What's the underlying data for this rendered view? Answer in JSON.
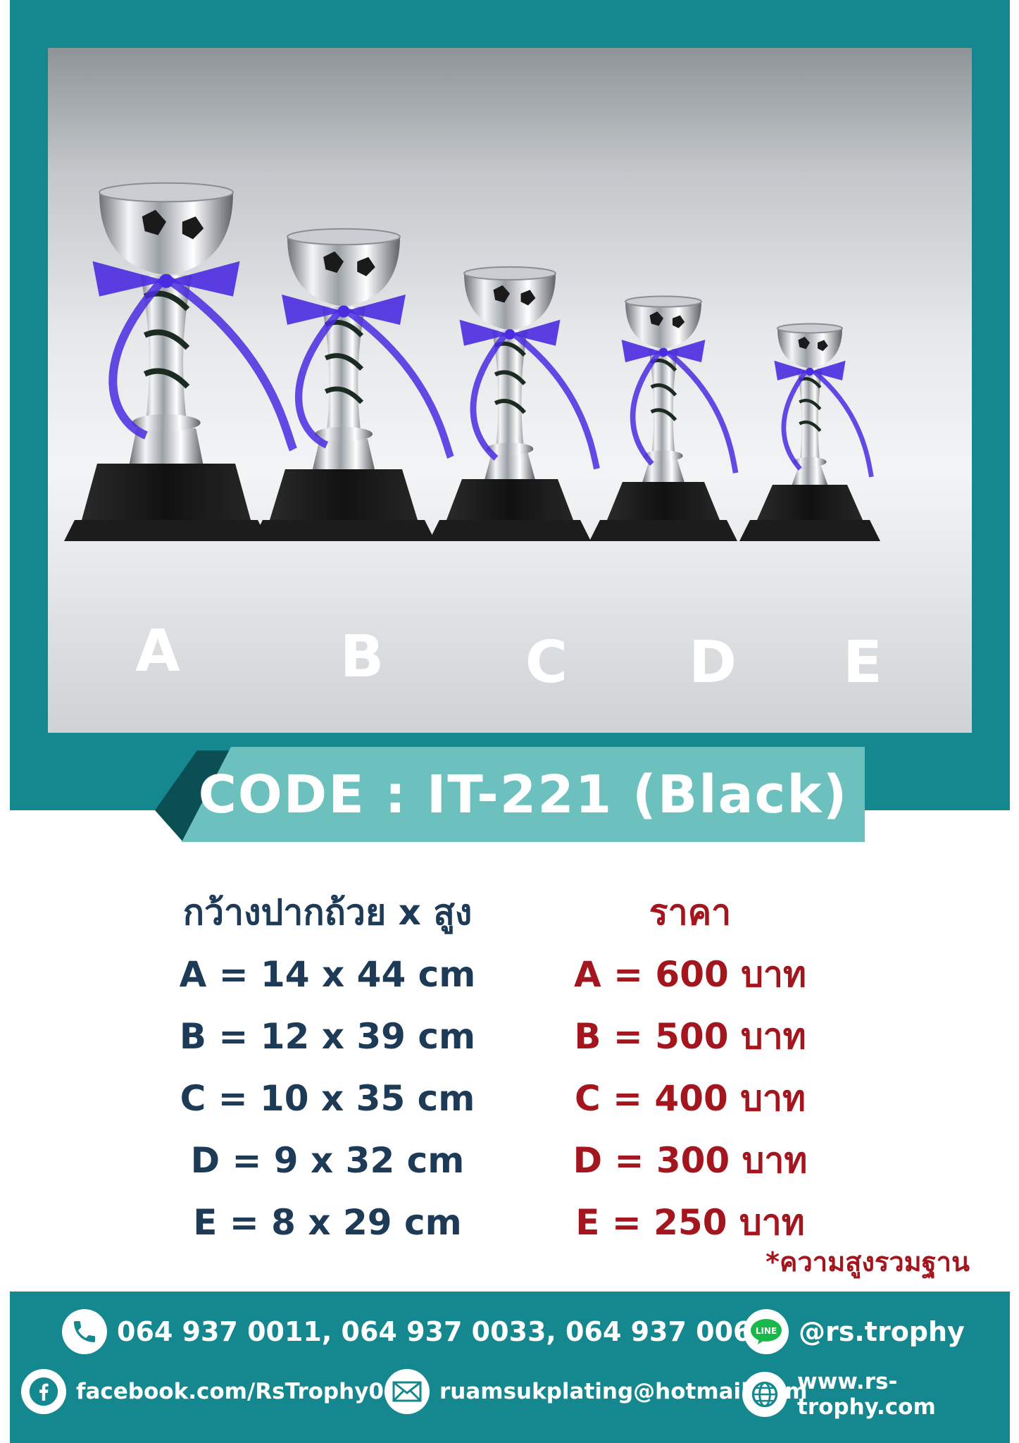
{
  "photo": {
    "trophies": [
      {
        "letter": "A"
      },
      {
        "letter": "B"
      },
      {
        "letter": "C"
      },
      {
        "letter": "D"
      },
      {
        "letter": "E"
      }
    ]
  },
  "code_label": "CODE : IT-221 (Black)",
  "sizes": {
    "header": "กว้างปากถ้วย x สูง",
    "rows": [
      "A = 14 x 44 cm",
      "B = 12 x 39 cm",
      "C = 10 x 35 cm",
      "D = 9 x 32 cm",
      "E = 8 x 29 cm"
    ]
  },
  "prices": {
    "header": "ราคา",
    "rows": [
      "A = 600 บาท",
      "B = 500 บาท",
      "C = 400 บาท",
      "D = 300 บาท",
      "E = 250 บาท"
    ]
  },
  "note": "*ความสูงรวมฐาน",
  "contacts": {
    "phone": "064 937 0011, 064 937 0033, 064 937 0066",
    "line": "@rs.trophy",
    "line_icon_text": "LINE",
    "facebook": "facebook.com/RsTrophy01",
    "email": "ruamsukplating@hotmail.com",
    "website": "www.rs-trophy.com"
  },
  "colors": {
    "teal": "#14888e",
    "band": "#6cc1bf",
    "navy_text": "#1d3b57",
    "price_red": "#a4161d",
    "ribbon": "#4a2be0",
    "base_black": "#141414"
  },
  "icons": [
    "phone-icon",
    "line-icon",
    "facebook-icon",
    "email-icon",
    "globe-icon"
  ]
}
